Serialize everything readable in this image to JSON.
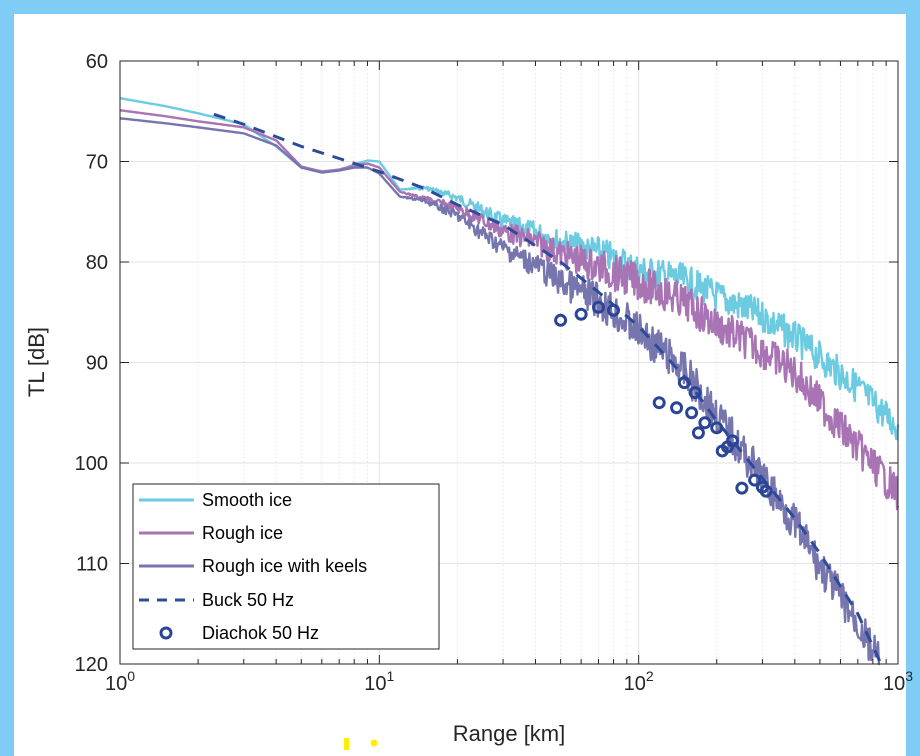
{
  "chart_data": {
    "type": "line",
    "xlabel": "Range [km]",
    "ylabel": "TL [dB]",
    "xscale": "log",
    "xlim": [
      1,
      1000
    ],
    "ylim": [
      60,
      120
    ],
    "y_reversed": true,
    "grid": true,
    "legend_position": "bottom-left",
    "x_ticks": [
      {
        "base": "10",
        "exp": "0"
      },
      {
        "base": "10",
        "exp": "1"
      },
      {
        "base": "10",
        "exp": "2"
      },
      {
        "base": "10",
        "exp": "3"
      }
    ],
    "y_ticks": [
      "60",
      "70",
      "80",
      "90",
      "100",
      "110",
      "120"
    ],
    "series": [
      {
        "name": "Smooth ice",
        "color": "#6ccbe0",
        "style": "solid",
        "x": [
          1,
          1.5,
          2,
          3,
          4,
          5,
          6,
          7,
          8,
          9,
          10,
          12,
          15,
          20,
          30,
          40,
          50,
          70,
          100,
          150,
          200,
          300,
          400,
          500,
          700,
          1000
        ],
        "y": [
          63.7,
          64.5,
          65.2,
          66.3,
          68.5,
          70.6,
          71.0,
          70.9,
          70.3,
          69.9,
          70.0,
          72.8,
          72.6,
          73.6,
          76.0,
          77.0,
          78.0,
          79.0,
          80.8,
          81.8,
          83.4,
          85.4,
          87.5,
          89.5,
          92.5,
          96.5
        ],
        "noise_start": 12,
        "noise_amp": 1.6
      },
      {
        "name": "Rough ice",
        "color": "#a874b4",
        "style": "solid",
        "x": [
          1,
          1.5,
          2,
          3,
          4,
          5,
          6,
          7,
          8,
          9,
          10,
          12,
          15,
          20,
          30,
          40,
          50,
          70,
          100,
          150,
          200,
          300,
          400,
          500,
          700,
          1000
        ],
        "y": [
          64.9,
          65.5,
          66.0,
          66.6,
          67.9,
          70.5,
          71.0,
          70.8,
          70.4,
          70.2,
          70.6,
          73.0,
          73.7,
          74.6,
          76.9,
          78.0,
          79.2,
          80.5,
          82.0,
          84.0,
          86.3,
          88.8,
          91.0,
          94.0,
          98.5,
          103.0
        ],
        "noise_start": 12,
        "noise_amp": 1.8
      },
      {
        "name": "Rough ice with keels",
        "color": "#7675ae",
        "style": "solid",
        "x": [
          1,
          1.5,
          2,
          3,
          4,
          5,
          6,
          7,
          8,
          9,
          10,
          12,
          15,
          20,
          30,
          40,
          50,
          70,
          100,
          150,
          200,
          250,
          300,
          400,
          500,
          700,
          850
        ],
        "y": [
          65.7,
          66.2,
          66.6,
          67.2,
          68.4,
          70.6,
          71.1,
          70.9,
          70.6,
          70.6,
          71.2,
          73.5,
          73.9,
          75.4,
          78.6,
          80.3,
          82.0,
          83.8,
          86.9,
          90.8,
          95.2,
          98.8,
          101.5,
          106.0,
          110.3,
          116.0,
          120.0
        ],
        "noise_start": 12,
        "noise_amp": 1.9
      },
      {
        "name": "Buck 50 Hz",
        "color": "#2e4b9a",
        "style": "dashed",
        "x": [
          2.3,
          3,
          5,
          7,
          10,
          15,
          20,
          30,
          50,
          70,
          100,
          150,
          200,
          300,
          400,
          500,
          700,
          850
        ],
        "y": [
          65.3,
          66.3,
          68.5,
          69.7,
          71.0,
          72.7,
          74.3,
          76.3,
          80.0,
          83.0,
          86.4,
          91.4,
          95.8,
          101.5,
          105.5,
          109.0,
          115.0,
          119.7
        ]
      },
      {
        "name": "Diachok 50 Hz",
        "color": "#2b4596",
        "style": "markers",
        "x": [
          50,
          60,
          70,
          80,
          120,
          140,
          150,
          160,
          165,
          170,
          180,
          200,
          210,
          220,
          230,
          250,
          280,
          300,
          310
        ],
        "y": [
          85.8,
          85.2,
          84.5,
          84.8,
          94.0,
          94.5,
          92.0,
          95.0,
          93.0,
          97.0,
          96.0,
          96.5,
          98.8,
          98.4,
          97.8,
          102.5,
          101.7,
          102.4,
          102.8
        ]
      }
    ]
  }
}
